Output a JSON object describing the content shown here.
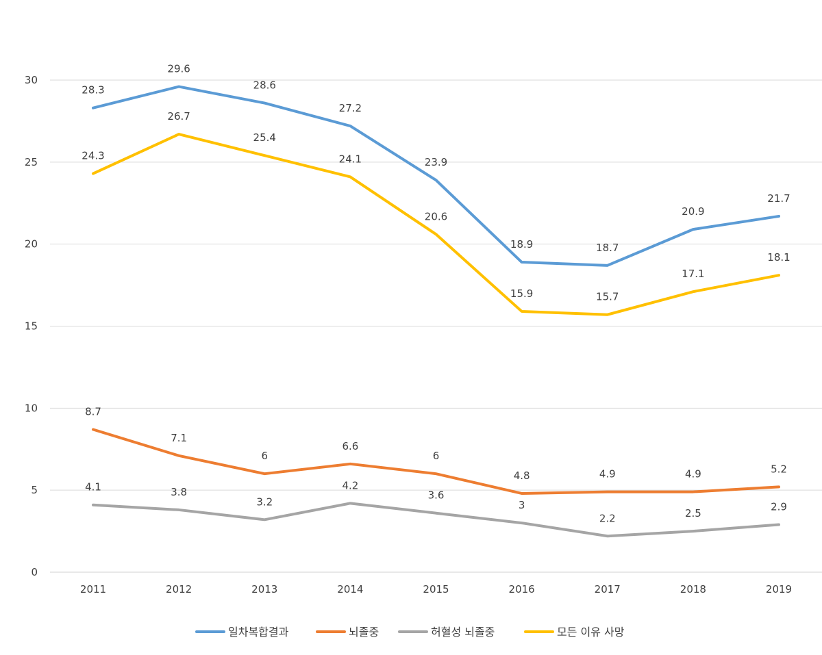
{
  "chart_data": {
    "type": "line",
    "title": "",
    "xlabel": "",
    "ylabel": "",
    "ylim": [
      0,
      30
    ],
    "yticks": [
      0,
      5,
      10,
      15,
      20,
      25,
      30
    ],
    "grid": true,
    "legend_position": "bottom",
    "categories": [
      "2011",
      "2012",
      "2013",
      "2014",
      "2015",
      "2016",
      "2017",
      "2018",
      "2019"
    ],
    "series": [
      {
        "name": "일차복합결과",
        "color": "#5b9bd5",
        "values": [
          28.3,
          29.6,
          28.6,
          27.2,
          23.9,
          18.9,
          18.7,
          20.9,
          21.7
        ]
      },
      {
        "name": "뇌졸중",
        "color": "#ed7d31",
        "values": [
          8.7,
          7.1,
          6,
          6.6,
          6,
          4.8,
          4.9,
          4.9,
          5.2
        ]
      },
      {
        "name": "허혈성 뇌졸중",
        "color": "#a5a5a5",
        "values": [
          4.1,
          3.8,
          3.2,
          4.2,
          3.6,
          3,
          2.2,
          2.5,
          2.9
        ]
      },
      {
        "name": "모든 이유 사망",
        "color": "#ffc000",
        "values": [
          24.3,
          26.7,
          25.4,
          24.1,
          20.6,
          15.9,
          15.7,
          17.1,
          18.1
        ]
      }
    ]
  }
}
